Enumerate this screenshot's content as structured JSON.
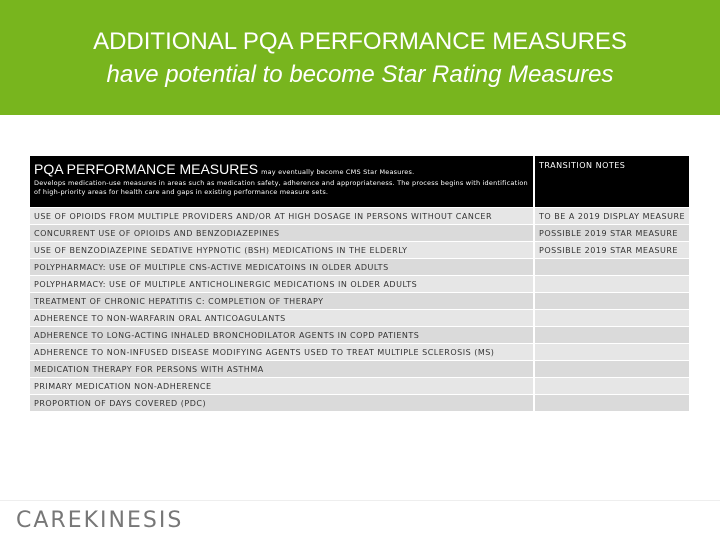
{
  "header": {
    "title": "ADDITIONAL PQA PERFORMANCE MEASURES",
    "subtitle": "have potential to become Star Rating Measures"
  },
  "table": {
    "heading": "PQA PERFORMANCE MEASURES",
    "heading_note": "may eventually become CMS Star Measures.",
    "description": "Develops medication-use measures in areas such as medication safety, adherence and appropriateness. The process begins with identification of high-priority areas for health care and gaps in existing performance measure sets.",
    "notes_heading": "TRANSITION NOTES",
    "rows": [
      {
        "measure": "USE OF OPIOIDS FROM MULTIPLE PROVIDERS AND/OR AT HIGH DOSAGE IN PERSONS WITHOUT CANCER",
        "note": "TO BE A 2019 DISPLAY MEASURE"
      },
      {
        "measure": "CONCURRENT USE OF OPIOIDS AND BENZODIAZEPINES",
        "note": "POSSIBLE 2019 STAR MEASURE"
      },
      {
        "measure": "USE OF BENZODIAZEPINE SEDATIVE HYPNOTIC (BSH) MEDICATIONS IN THE ELDERLY",
        "note": "POSSIBLE 2019 STAR MEASURE"
      },
      {
        "measure": "POLYPHARMACY: USE OF MULTIPLE CNS-ACTIVE MEDICATOINS IN OLDER ADULTS"
      },
      {
        "measure": "POLYPHARMACY: USE OF MULTIPLE ANTICHOLINERGIC MEDICATIONS IN OLDER ADULTS"
      },
      {
        "measure": "TREATMENT OF CHRONIC HEPATITIS C: COMPLETION OF THERAPY"
      },
      {
        "measure": "ADHERENCE TO NON-WARFARIN ORAL ANTICOAGULANTS"
      },
      {
        "measure": "ADHERENCE TO LONG-ACTING INHALED BRONCHODILATOR AGENTS IN COPD PATIENTS"
      },
      {
        "measure": "ADHERENCE TO NON-INFUSED DISEASE MODIFYING AGENTS USED TO TREAT MULTIPLE SCLEROSIS (MS)"
      },
      {
        "measure": "MEDICATION THERAPY FOR PERSONS WITH ASTHMA"
      },
      {
        "measure": "PRIMARY MEDICATION NON-ADHERENCE"
      },
      {
        "measure": "PROPORTION OF DAYS COVERED (PDC)"
      }
    ]
  },
  "logo": "CAREKINESIS"
}
